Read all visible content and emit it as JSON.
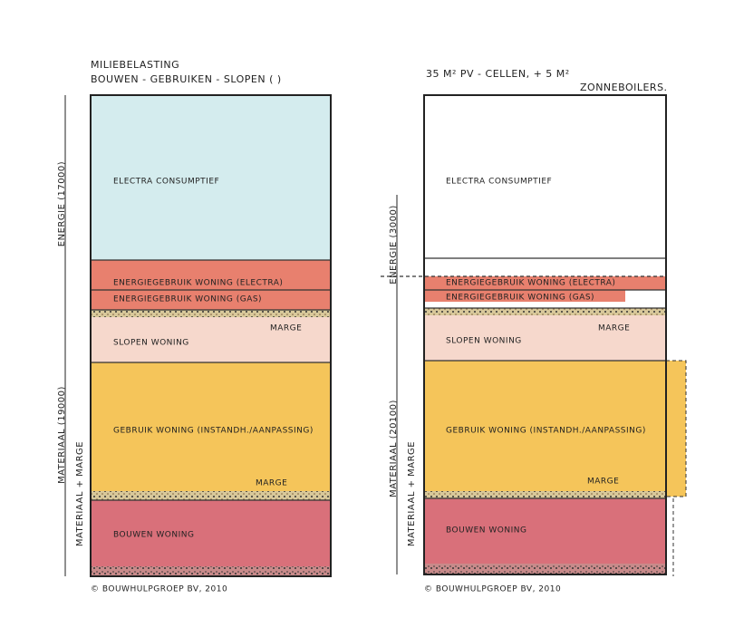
{
  "left": {
    "title": [
      "MILIEBELASTING",
      "BOUWEN - GEBRUIKEN - SLOPEN ( )"
    ],
    "segments": [
      "ELECTRA CONSUMPTIEF",
      "ENERGIEGEBRUIK WONING (ELECTRA)",
      "ENERGIEGEBRUIK WONING (GAS)",
      "MARGE",
      "SLOPEN WONING",
      "GEBRUIK WONING (INSTANDH./AANPASSING)",
      "MARGE",
      "BOUWEN WONING"
    ],
    "side": [
      "ENERGIE (17000)",
      "MATERIAAL (19000)",
      "MATERIAAL + MARGE"
    ],
    "footer": "© BOUWHULPGROEP BV, 2010"
  },
  "right": {
    "title": [
      "35 M² PV - CELLEN, + 5 M²",
      "ZONNEBOILERS."
    ],
    "segments": [
      "ELECTRA CONSUMPTIEF",
      "ENERGIEGEBRUIK WONING (ELECTRA)",
      "ENERGIEGEBRUIK WONING (GAS)",
      "MARGE",
      "SLOPEN WONING",
      "GEBRUIK WONING (INSTANDH./AANPASSING)",
      "MARGE",
      "BOUWEN WONING"
    ],
    "side": [
      "ENERGIE (3000)",
      "MATERIAAL (20100)",
      "MATERIAAL + MARGE"
    ],
    "footer": "© BOUWHULPGROEP BV, 2010"
  }
}
